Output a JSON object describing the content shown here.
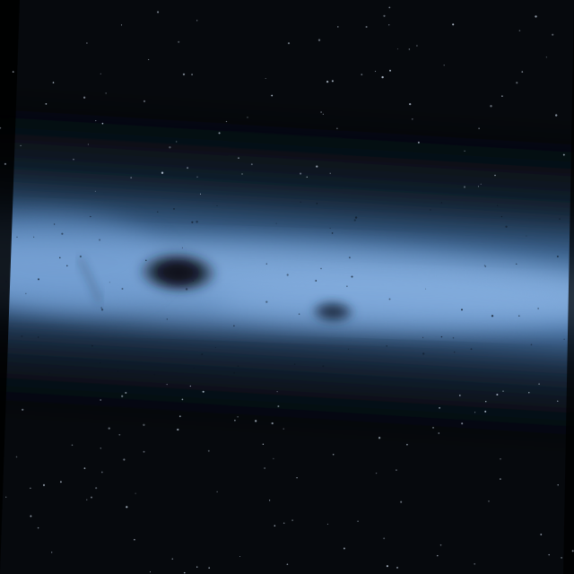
{
  "image": {
    "subject": "blue-band-with-dark-spots",
    "colors": {
      "background": "#06090d",
      "band_core": "#7fa8d6",
      "band_mid": "#3f6a9a",
      "band_edge": "#152536",
      "spot": "#0b1420",
      "frame_corner": "#000000"
    }
  }
}
